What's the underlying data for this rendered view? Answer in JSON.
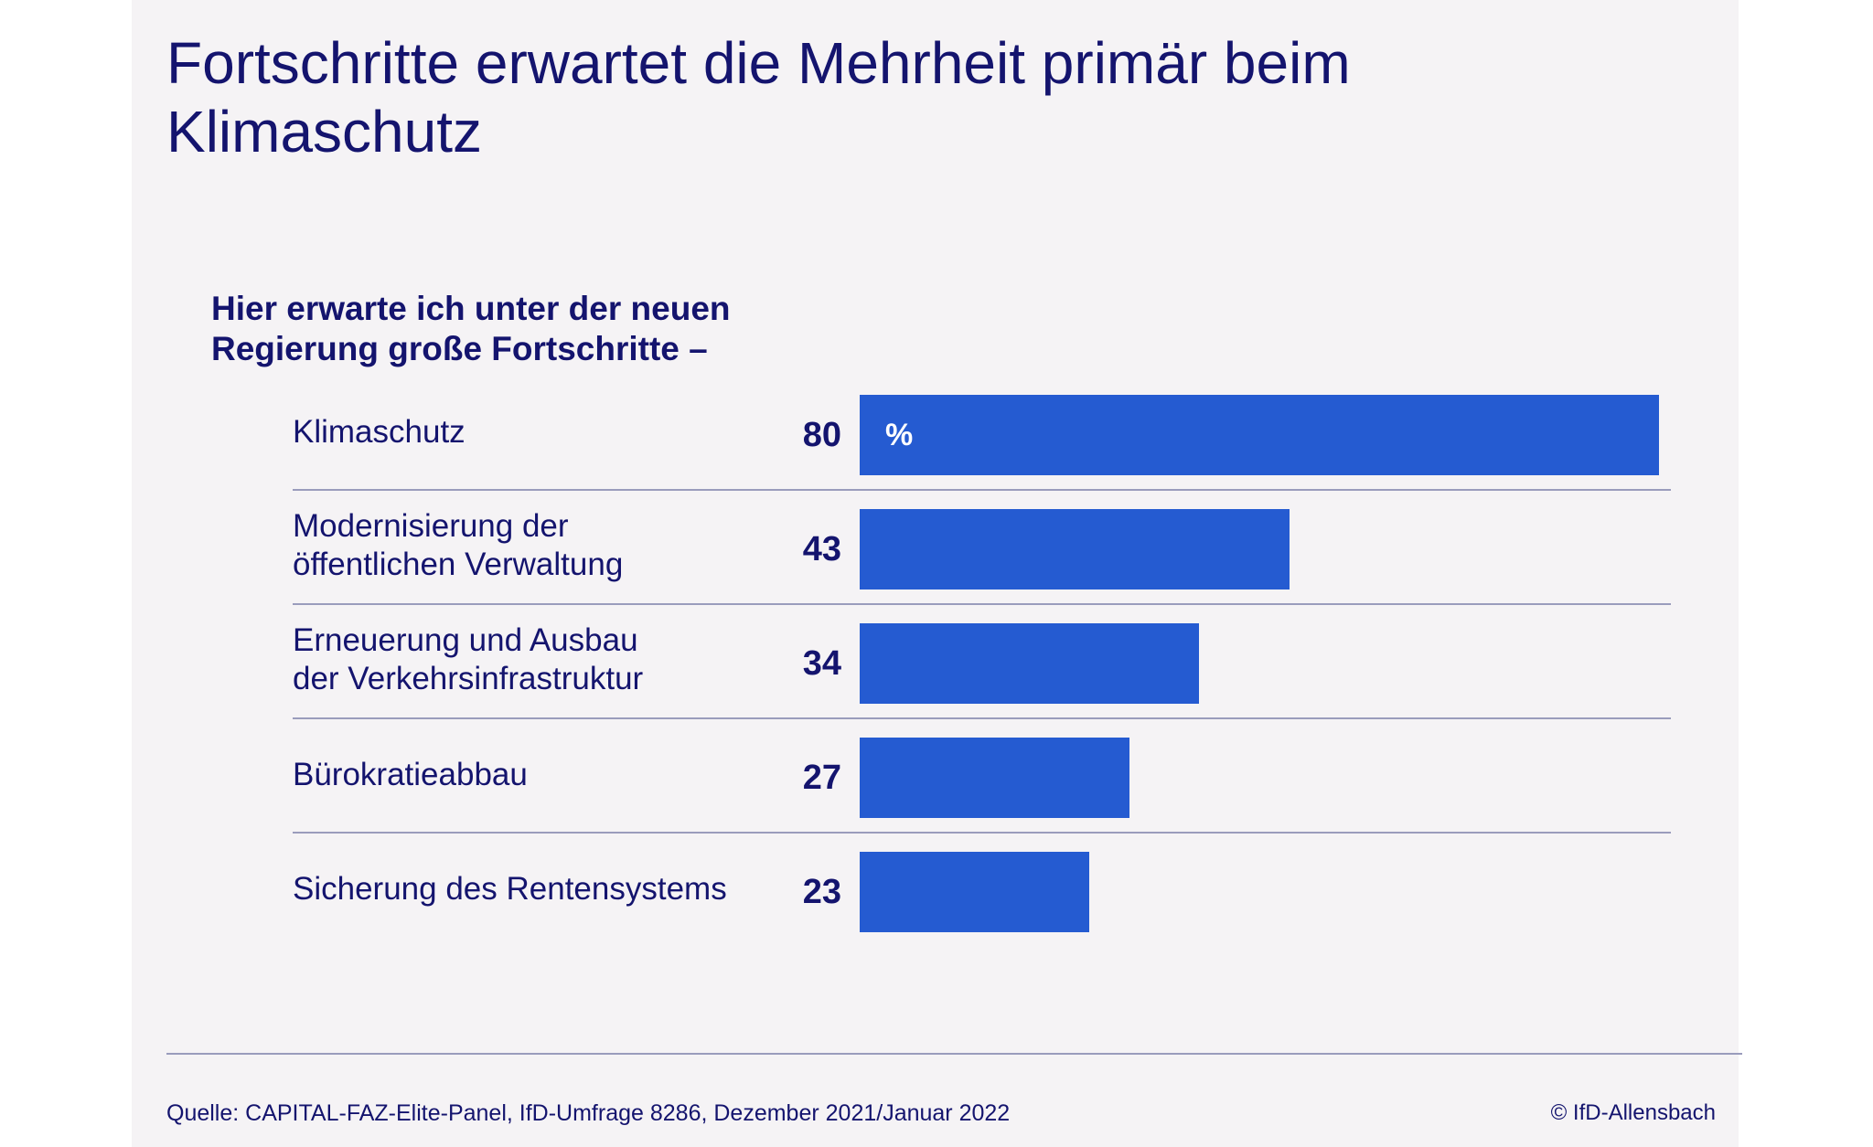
{
  "chart_data": {
    "type": "bar",
    "orientation": "horizontal",
    "title": "Fortschritte erwartet die Mehrheit primär beim Klimaschutz",
    "subtitle": "Hier erwarte ich unter der neuen Regierung große Fortschritte –",
    "unit": "%",
    "categories": [
      [
        "Klimaschutz"
      ],
      [
        "Modernisierung der",
        "öffentlichen Verwaltung"
      ],
      [
        "Erneuerung und Ausbau",
        "der Verkehrsinfrastruktur"
      ],
      [
        "Bürokratieabbau"
      ],
      [
        "Sicherung des Rentensystems"
      ]
    ],
    "values": [
      80,
      43,
      34,
      27,
      23
    ],
    "xlim": [
      0,
      80
    ],
    "bar_color": "#255bd1",
    "grid": false,
    "legend": "none"
  },
  "footer": {
    "source": "Quelle: CAPITAL-FAZ-Elite-Panel, IfD-Umfrage 8286, Dezember 2021/Januar 2022",
    "copyright": "© IfD-Allensbach"
  }
}
